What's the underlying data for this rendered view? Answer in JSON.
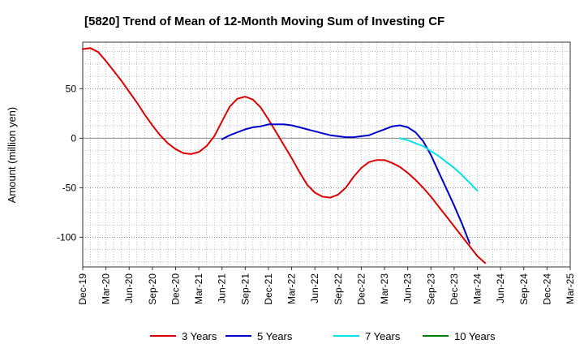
{
  "chart_data": {
    "type": "line",
    "title": "[5820]  Trend of Mean of 12-Month Moving Sum of Investing CF",
    "ylabel": "Amount (million yen)",
    "xlabel": "",
    "ylim": [
      -130,
      97
    ],
    "grid": true,
    "legend_position": "bottom",
    "x_ticks": [
      "Dec-19",
      "Mar-20",
      "Jun-20",
      "Sep-20",
      "Dec-20",
      "Mar-21",
      "Jun-21",
      "Sep-21",
      "Dec-21",
      "Mar-22",
      "Jun-22",
      "Sep-22",
      "Dec-22",
      "Mar-23",
      "Jun-23",
      "Sep-23",
      "Dec-23",
      "Mar-24",
      "Jun-24",
      "Sep-24",
      "Dec-24",
      "Mar-25"
    ],
    "y_ticks": [
      50,
      0,
      -50,
      -100
    ],
    "y_tick_labels": [
      "50",
      "0",
      "-50",
      "-100"
    ],
    "series": [
      {
        "name": "3 Years",
        "color": "#e00000",
        "start_index": 0,
        "values": [
          90,
          91,
          87,
          78,
          68,
          58,
          47,
          36,
          24,
          13,
          3,
          -5,
          -11,
          -15,
          -16,
          -14,
          -8,
          2,
          17,
          32,
          40,
          42,
          39,
          31,
          19,
          6,
          -7,
          -20,
          -34,
          -47,
          -55,
          -59,
          -60,
          -57,
          -50,
          -39,
          -30,
          -24,
          -22,
          -22,
          -25,
          -29,
          -35,
          -42,
          -50,
          -59,
          -69,
          -79,
          -89,
          -99,
          -109,
          -119,
          -126
        ]
      },
      {
        "name": "5 Years",
        "color": "#0000cc",
        "start_index": 18,
        "values": [
          -1,
          3,
          6,
          9,
          11,
          12,
          14,
          14,
          14,
          13,
          11,
          9,
          7,
          5,
          3,
          2,
          1,
          1,
          2,
          3,
          6,
          9,
          12,
          13,
          11,
          6,
          -3,
          -17,
          -34,
          -51,
          -68,
          -86,
          -106
        ]
      },
      {
        "name": "7 Years",
        "color": "#00e5ee",
        "start_index": 41,
        "values": [
          0,
          -2,
          -5,
          -8,
          -13,
          -18,
          -24,
          -30,
          -37,
          -45,
          -53
        ]
      },
      {
        "name": "10 Years",
        "color": "#008000",
        "start_index": null,
        "values": []
      }
    ]
  }
}
